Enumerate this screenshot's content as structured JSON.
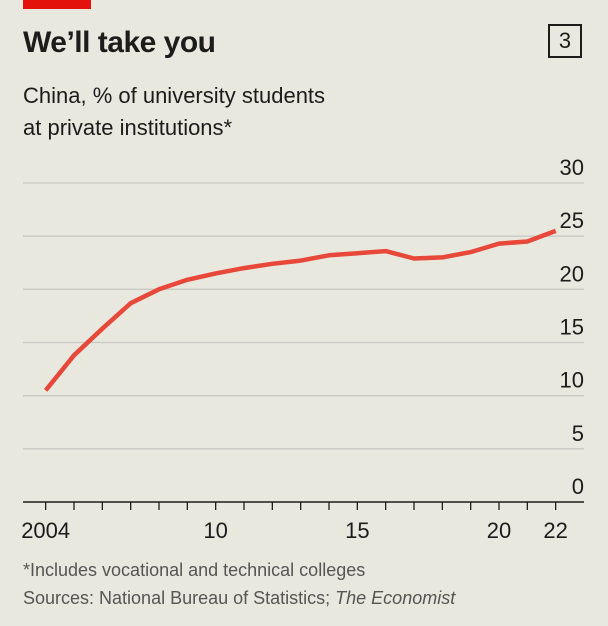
{
  "header": {
    "title": "We’ll take you",
    "chart_number": "3",
    "subtitle_line1": "China, % of university students",
    "subtitle_line2": "at private institutions*"
  },
  "footer": {
    "footnote": "*Includes vocational and technical colleges",
    "source_prefix": "Sources: National Bureau of Statistics; ",
    "source_italic": "The Economist"
  },
  "colors": {
    "accent": "#e3120b",
    "line": "#e8483a",
    "background": "#e9e8df",
    "grid": "#c9c9c2"
  },
  "chart_data": {
    "type": "line",
    "x": [
      2004,
      2005,
      2006,
      2007,
      2008,
      2009,
      2010,
      2011,
      2012,
      2013,
      2014,
      2015,
      2016,
      2017,
      2018,
      2019,
      2020,
      2021,
      2022
    ],
    "series": [
      {
        "values": [
          10.5,
          13.8,
          16.3,
          18.7,
          20.0,
          20.9,
          21.5,
          22.0,
          22.4,
          22.7,
          23.2,
          23.4,
          23.6,
          22.9,
          23.0,
          23.5,
          24.3,
          24.5,
          25.5
        ]
      }
    ],
    "ylim": [
      0,
      30
    ],
    "yticks": [
      "0",
      "5",
      "10",
      "15",
      "20",
      "25",
      "30"
    ],
    "xlim": [
      2003.2,
      2023
    ],
    "xtick_labels": [
      {
        "x": 2004,
        "label": "2004"
      },
      {
        "x": 2010,
        "label": "10"
      },
      {
        "x": 2015,
        "label": "15"
      },
      {
        "x": 2020,
        "label": "20"
      },
      {
        "x": 2022,
        "label": "22"
      }
    ],
    "grid": true,
    "y_axis_side": "right"
  }
}
